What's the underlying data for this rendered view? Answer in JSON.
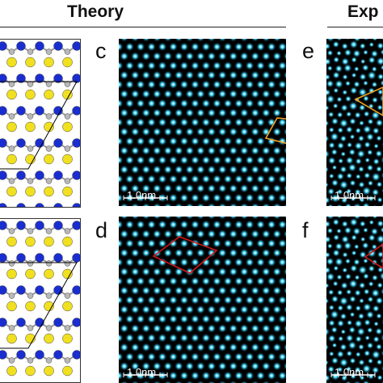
{
  "headers": {
    "theory": "Theory",
    "experiment": "Exp"
  },
  "panels": {
    "c": {
      "label": "c",
      "scale": "1.0nm",
      "cell_color": "#f0a020"
    },
    "d": {
      "label": "d",
      "scale": "1.0nm",
      "cell_color": "#d01818"
    },
    "e": {
      "label": "e",
      "scale": "1.0nm",
      "cell_color": "#f0a020"
    },
    "f": {
      "label": "f",
      "scale": "1.0nm",
      "cell_color": "#d01818"
    }
  },
  "colors": {
    "atom_yellow": "#f0e020",
    "atom_blue": "#1a2ed0",
    "atom_gray": "#b8b8b8",
    "stm_spot": "#40d8ff",
    "background": "#ffffff"
  }
}
